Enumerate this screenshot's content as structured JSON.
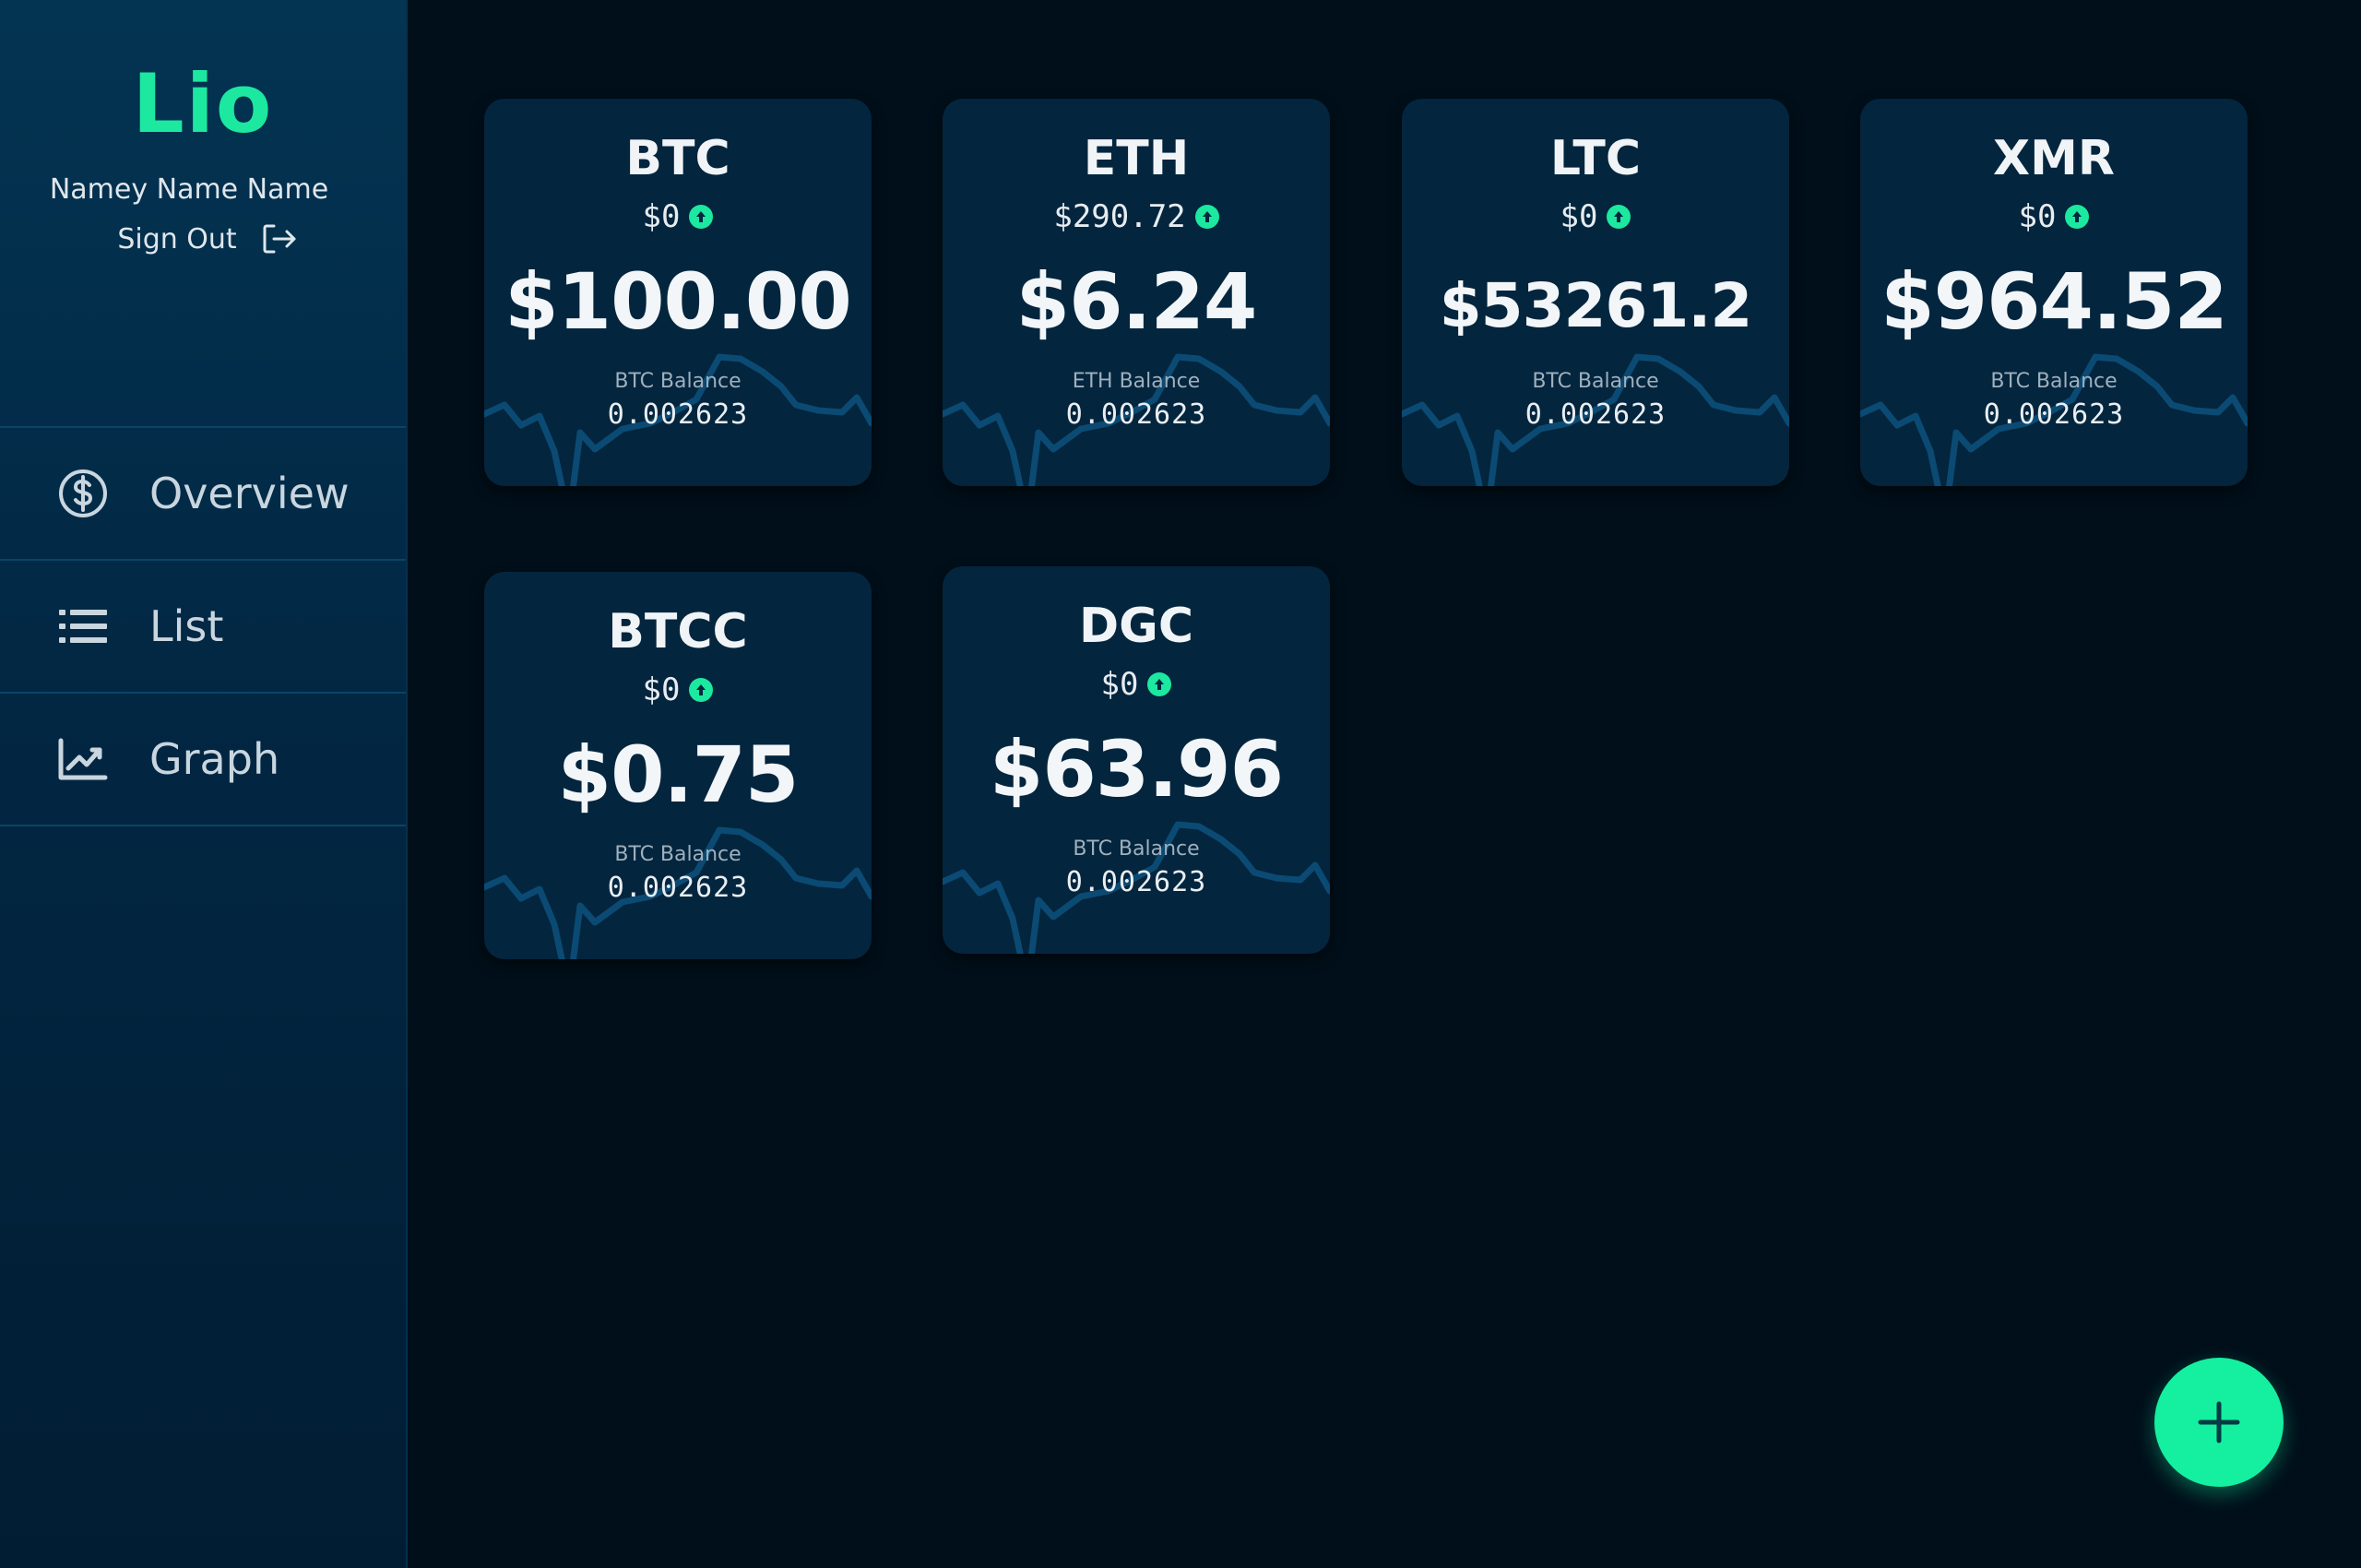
{
  "brand": {
    "title": "Lio"
  },
  "user": {
    "name": "Namey Name Name",
    "signout_label": "Sign Out"
  },
  "nav": {
    "items": [
      {
        "label": "Overview",
        "icon": "dollar-circle-icon"
      },
      {
        "label": "List",
        "icon": "list-icon"
      },
      {
        "label": "Graph",
        "icon": "line-chart-icon"
      }
    ]
  },
  "colors": {
    "accent": "#1ce8a0",
    "card_bg": "#03253e",
    "page_bg": "#000f1a",
    "sparkline": "#0b4a73"
  },
  "cards": [
    {
      "symbol": "BTC",
      "change": "$0",
      "price": "$100.00",
      "balance_label": "BTC Balance",
      "balance": "0.002623"
    },
    {
      "symbol": "ETH",
      "change": "$290.72",
      "price": "$6.24",
      "balance_label": "ETH Balance",
      "balance": "0.002623"
    },
    {
      "symbol": "LTC",
      "change": "$0",
      "price": "$53261.2",
      "balance_label": "BTC Balance",
      "balance": "0.002623"
    },
    {
      "symbol": "XMR",
      "change": "$0",
      "price": "$964.52",
      "balance_label": "BTC Balance",
      "balance": "0.002623"
    },
    {
      "symbol": "BTCC",
      "change": "$0",
      "price": "$0.75",
      "balance_label": "BTC Balance",
      "balance": "0.002623"
    },
    {
      "symbol": "DGC",
      "change": "$0",
      "price": "$63.96",
      "balance_label": "BTC Balance",
      "balance": "0.002623"
    }
  ],
  "fab": {
    "icon": "plus-icon"
  }
}
